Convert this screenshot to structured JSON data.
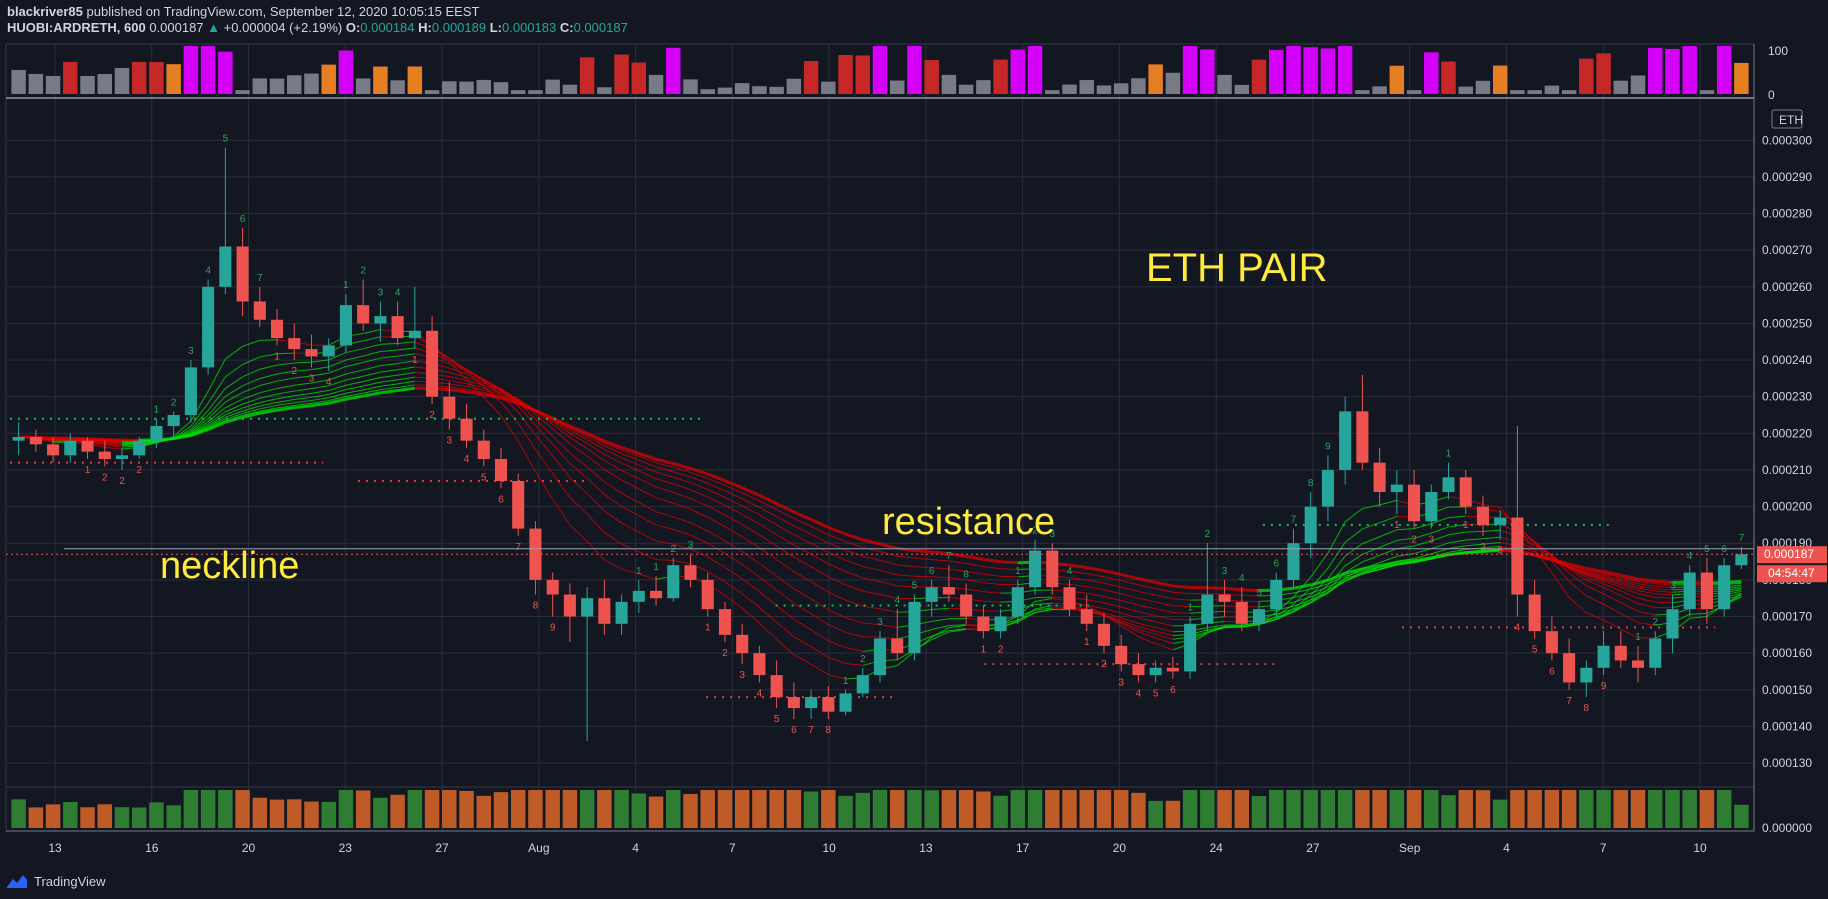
{
  "header": {
    "author": "blackriver85",
    "published_text": "published on TradingView.com, September 12, 2020 10:05:15 EEST",
    "symbol": "HUOBI:ARDRETH, 600",
    "last": "0.000187",
    "change": "+0.000004 (+2.19%)",
    "o_label": "O:",
    "o_value": "0.000184",
    "h_label": "H:",
    "h_value": "0.000189",
    "l_label": "L:",
    "l_value": "0.000183",
    "c_label": "C:",
    "c_value": "0.000187"
  },
  "annotations": {
    "title": "ETH PAIR",
    "neckline": "neckline",
    "resistance": "resistance"
  },
  "price_axis": {
    "currency_tag": "ETH",
    "last_price_tag": "0.000187",
    "countdown_tag": "04:54:47",
    "ticks": [
      "0.000130",
      "0.000140",
      "0.000150",
      "0.000160",
      "0.000170",
      "0.000180",
      "0.000190",
      "0.000200",
      "0.000210",
      "0.000220",
      "0.000230",
      "0.000240",
      "0.000250",
      "0.000260",
      "0.000270",
      "0.000280",
      "0.000290",
      "0.000300"
    ]
  },
  "osc_axis": {
    "ticks": [
      "100",
      "0"
    ]
  },
  "vol_axis": {
    "ticks": [
      "0.000000"
    ]
  },
  "time_axis": {
    "ticks": [
      "13",
      "16",
      "20",
      "23",
      "27",
      "Aug",
      "4",
      "7",
      "10",
      "13",
      "17",
      "20",
      "24",
      "27",
      "Sep",
      "4",
      "7",
      "10"
    ]
  },
  "footer": {
    "brand": "TradingView"
  },
  "colors": {
    "background": "#131722",
    "bull": "#26a69a",
    "bear": "#ef5350",
    "accent_yellow": "#ffeb3b",
    "ribbon_green": "#00e600",
    "ribbon_red": "#e00000"
  },
  "chart_data": {
    "type": "candlestick",
    "symbol": "HUOBI:ARDRETH",
    "ylim": [
      0.000124,
      0.000311
    ],
    "osc_ylim": [
      0,
      100
    ],
    "horizontal_lines": [
      {
        "name": "neckline",
        "value": 0.0001885
      },
      {
        "name": "resistance",
        "value": 0.0001885
      }
    ],
    "dotted_levels": [
      {
        "value": 0.000224,
        "color": "green",
        "start": 0,
        "end": 0.4
      },
      {
        "value": 0.000212,
        "color": "red",
        "start": 0,
        "end": 0.18
      },
      {
        "value": 0.000207,
        "color": "red",
        "start": 0.2,
        "end": 0.33
      },
      {
        "value": 0.000173,
        "color": "green",
        "start": 0.44,
        "end": 0.62
      },
      {
        "value": 0.000148,
        "color": "red",
        "start": 0.4,
        "end": 0.51
      },
      {
        "value": 0.000157,
        "color": "red",
        "start": 0.56,
        "end": 0.73
      },
      {
        "value": 0.000195,
        "color": "green",
        "start": 0.72,
        "end": 0.92
      },
      {
        "value": 0.000167,
        "color": "red",
        "start": 0.8,
        "end": 0.98
      }
    ],
    "ohlc": [
      [
        0.000218,
        0.000223,
        0.000214,
        0.000219
      ],
      [
        0.000219,
        0.000221,
        0.000215,
        0.000217
      ],
      [
        0.000217,
        0.000219,
        0.000212,
        0.000214
      ],
      [
        0.000214,
        0.00022,
        0.000212,
        0.000218
      ],
      [
        0.000218,
        0.000219,
        0.000213,
        0.000215
      ],
      [
        0.000215,
        0.000218,
        0.000211,
        0.000213
      ],
      [
        0.000213,
        0.000216,
        0.00021,
        0.000214
      ],
      [
        0.000214,
        0.000219,
        0.000213,
        0.000218
      ],
      [
        0.000218,
        0.000224,
        0.000216,
        0.000222
      ],
      [
        0.000222,
        0.000226,
        0.000219,
        0.000225
      ],
      [
        0.000225,
        0.00024,
        0.000223,
        0.000238
      ],
      [
        0.000238,
        0.000262,
        0.000236,
        0.00026
      ],
      [
        0.00026,
        0.000298,
        0.000258,
        0.000271
      ],
      [
        0.000271,
        0.000276,
        0.000252,
        0.000256
      ],
      [
        0.000256,
        0.00026,
        0.000249,
        0.000251
      ],
      [
        0.000251,
        0.000254,
        0.000244,
        0.000246
      ],
      [
        0.000246,
        0.00025,
        0.00024,
        0.000243
      ],
      [
        0.000243,
        0.000247,
        0.000238,
        0.000241
      ],
      [
        0.000241,
        0.000246,
        0.000237,
        0.000244
      ],
      [
        0.000244,
        0.000258,
        0.000242,
        0.000255
      ],
      [
        0.000255,
        0.000262,
        0.000248,
        0.00025
      ],
      [
        0.00025,
        0.000256,
        0.000245,
        0.000252
      ],
      [
        0.000252,
        0.000256,
        0.000244,
        0.000246
      ],
      [
        0.000246,
        0.00026,
        0.000243,
        0.000248
      ],
      [
        0.000248,
        0.000252,
        0.000228,
        0.00023
      ],
      [
        0.00023,
        0.000234,
        0.000221,
        0.000224
      ],
      [
        0.000224,
        0.000228,
        0.000216,
        0.000218
      ],
      [
        0.000218,
        0.000221,
        0.000211,
        0.000213
      ],
      [
        0.000213,
        0.000216,
        0.000205,
        0.000207
      ],
      [
        0.000207,
        0.000209,
        0.000192,
        0.000194
      ],
      [
        0.000194,
        0.000196,
        0.000176,
        0.00018
      ],
      [
        0.00018,
        0.000182,
        0.00017,
        0.000176
      ],
      [
        0.000176,
        0.000179,
        0.000163,
        0.00017
      ],
      [
        0.00017,
        0.000178,
        0.000136,
        0.000175
      ],
      [
        0.000175,
        0.00018,
        0.000165,
        0.000168
      ],
      [
        0.000168,
        0.000176,
        0.000165,
        0.000174
      ],
      [
        0.000174,
        0.00018,
        0.000171,
        0.000177
      ],
      [
        0.000177,
        0.000181,
        0.000173,
        0.000175
      ],
      [
        0.000175,
        0.000186,
        0.000174,
        0.000184
      ],
      [
        0.000184,
        0.000187,
        0.000178,
        0.00018
      ],
      [
        0.00018,
        0.000182,
        0.00017,
        0.000172
      ],
      [
        0.000172,
        0.000174,
        0.000163,
        0.000165
      ],
      [
        0.000165,
        0.000168,
        0.000157,
        0.00016
      ],
      [
        0.00016,
        0.000162,
        0.000152,
        0.000154
      ],
      [
        0.000154,
        0.000158,
        0.000145,
        0.000148
      ],
      [
        0.000148,
        0.000152,
        0.000142,
        0.000145
      ],
      [
        0.000145,
        0.00015,
        0.000142,
        0.000148
      ],
      [
        0.000148,
        0.000151,
        0.000142,
        0.000144
      ],
      [
        0.000144,
        0.00015,
        0.000143,
        0.000149
      ],
      [
        0.000149,
        0.000156,
        0.000148,
        0.000154
      ],
      [
        0.000154,
        0.000166,
        0.000152,
        0.000164
      ],
      [
        0.000164,
        0.000172,
        0.000158,
        0.00016
      ],
      [
        0.00016,
        0.000176,
        0.000158,
        0.000174
      ],
      [
        0.000174,
        0.00018,
        0.00017,
        0.000178
      ],
      [
        0.000178,
        0.000184,
        0.000174,
        0.000176
      ],
      [
        0.000176,
        0.000179,
        0.000168,
        0.00017
      ],
      [
        0.00017,
        0.000173,
        0.000164,
        0.000166
      ],
      [
        0.000166,
        0.000172,
        0.000164,
        0.00017
      ],
      [
        0.00017,
        0.00018,
        0.000168,
        0.000178
      ],
      [
        0.000178,
        0.000191,
        0.000176,
        0.000188
      ],
      [
        0.000188,
        0.00019,
        0.000176,
        0.000178
      ],
      [
        0.000178,
        0.00018,
        0.00017,
        0.000172
      ],
      [
        0.000172,
        0.000176,
        0.000166,
        0.000168
      ],
      [
        0.000168,
        0.000171,
        0.00016,
        0.000162
      ],
      [
        0.000162,
        0.000165,
        0.000155,
        0.000157
      ],
      [
        0.000157,
        0.00016,
        0.000152,
        0.000154
      ],
      [
        0.000154,
        0.000158,
        0.000152,
        0.000156
      ],
      [
        0.000156,
        0.000159,
        0.000153,
        0.000155
      ],
      [
        0.000155,
        0.00017,
        0.000153,
        0.000168
      ],
      [
        0.000168,
        0.00019,
        0.000166,
        0.000176
      ],
      [
        0.000176,
        0.00018,
        0.00017,
        0.000174
      ],
      [
        0.000174,
        0.000178,
        0.000166,
        0.000168
      ],
      [
        0.000168,
        0.000174,
        0.000166,
        0.000172
      ],
      [
        0.000172,
        0.000182,
        0.00017,
        0.00018
      ],
      [
        0.00018,
        0.000194,
        0.000178,
        0.00019
      ],
      [
        0.00019,
        0.000204,
        0.000186,
        0.0002
      ],
      [
        0.0002,
        0.000214,
        0.000196,
        0.00021
      ],
      [
        0.00021,
        0.00023,
        0.000206,
        0.000226
      ],
      [
        0.000226,
        0.000236,
        0.00021,
        0.000212
      ],
      [
        0.000212,
        0.000216,
        0.0002,
        0.000204
      ],
      [
        0.000204,
        0.00021,
        0.000198,
        0.000206
      ],
      [
        0.000206,
        0.00021,
        0.000194,
        0.000196
      ],
      [
        0.000196,
        0.000206,
        0.000194,
        0.000204
      ],
      [
        0.000204,
        0.000212,
        0.000202,
        0.000208
      ],
      [
        0.000208,
        0.00021,
        0.000198,
        0.0002
      ],
      [
        0.0002,
        0.000203,
        0.000192,
        0.000195
      ],
      [
        0.000195,
        0.000199,
        0.000191,
        0.000197
      ],
      [
        0.000197,
        0.000222,
        0.00017,
        0.000176
      ],
      [
        0.000176,
        0.00018,
        0.000164,
        0.000166
      ],
      [
        0.000166,
        0.00017,
        0.000158,
        0.00016
      ],
      [
        0.00016,
        0.000164,
        0.00015,
        0.000152
      ],
      [
        0.000152,
        0.000158,
        0.000148,
        0.000156
      ],
      [
        0.000156,
        0.000166,
        0.000154,
        0.000162
      ],
      [
        0.000162,
        0.000166,
        0.000156,
        0.000158
      ],
      [
        0.000158,
        0.000162,
        0.000152,
        0.000156
      ],
      [
        0.000156,
        0.000166,
        0.000154,
        0.000164
      ],
      [
        0.000164,
        0.000176,
        0.00016,
        0.000172
      ],
      [
        0.000172,
        0.000184,
        0.00017,
        0.000182
      ],
      [
        0.000182,
        0.000186,
        0.000168,
        0.000172
      ],
      [
        0.000172,
        0.000186,
        0.00017,
        0.000184
      ],
      [
        0.000184,
        0.000189,
        0.000183,
        0.000187
      ]
    ]
  }
}
